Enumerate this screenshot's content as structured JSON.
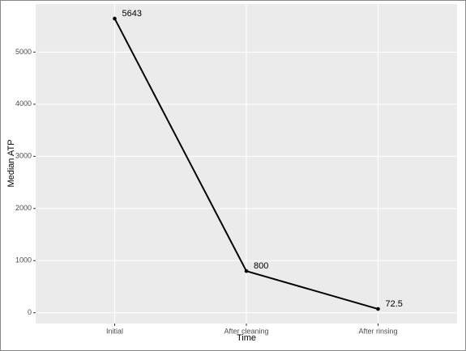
{
  "chart_data": {
    "type": "line",
    "x_label": "Time",
    "y_label": "Median ATP",
    "categories": [
      "Initial",
      "After cleaning",
      "After rinsing"
    ],
    "values": [
      5643,
      800,
      72.5
    ],
    "color": "#000000",
    "ylim": [
      -206,
      5921.5
    ],
    "yticks": [
      0,
      1000,
      2000,
      3000,
      4000,
      5000
    ],
    "grid": true
  }
}
